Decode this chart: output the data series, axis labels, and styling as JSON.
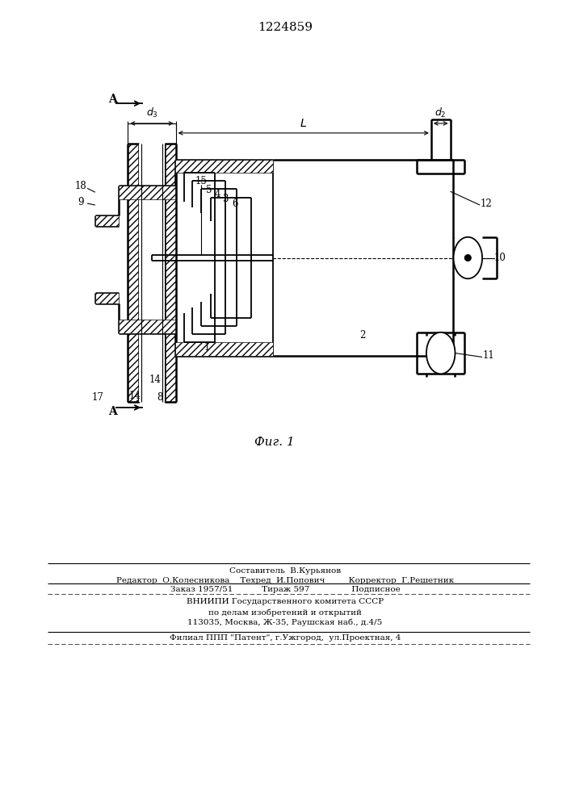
{
  "title": "1224859",
  "fig_label": "Фиг. 1",
  "bg_color": "#ffffff",
  "line_color": "#000000",
  "footer_lines": [
    "Составитель  В.Курьянов",
    "Редактор  О.Колесникова    Техред  И.Попович         Корректор  Г.Решетник",
    "Заказ 1957/51           Тираж 597                Подписное",
    "ВНИИПИ Государственного комитета СССР",
    "по делам изобретений и открытий",
    "113035, Москва, Ж-35, Раушская наб., д.4/5",
    "Филиал ППП \"Патент\", г.Ужгород,  ул.Проектная, 4"
  ]
}
